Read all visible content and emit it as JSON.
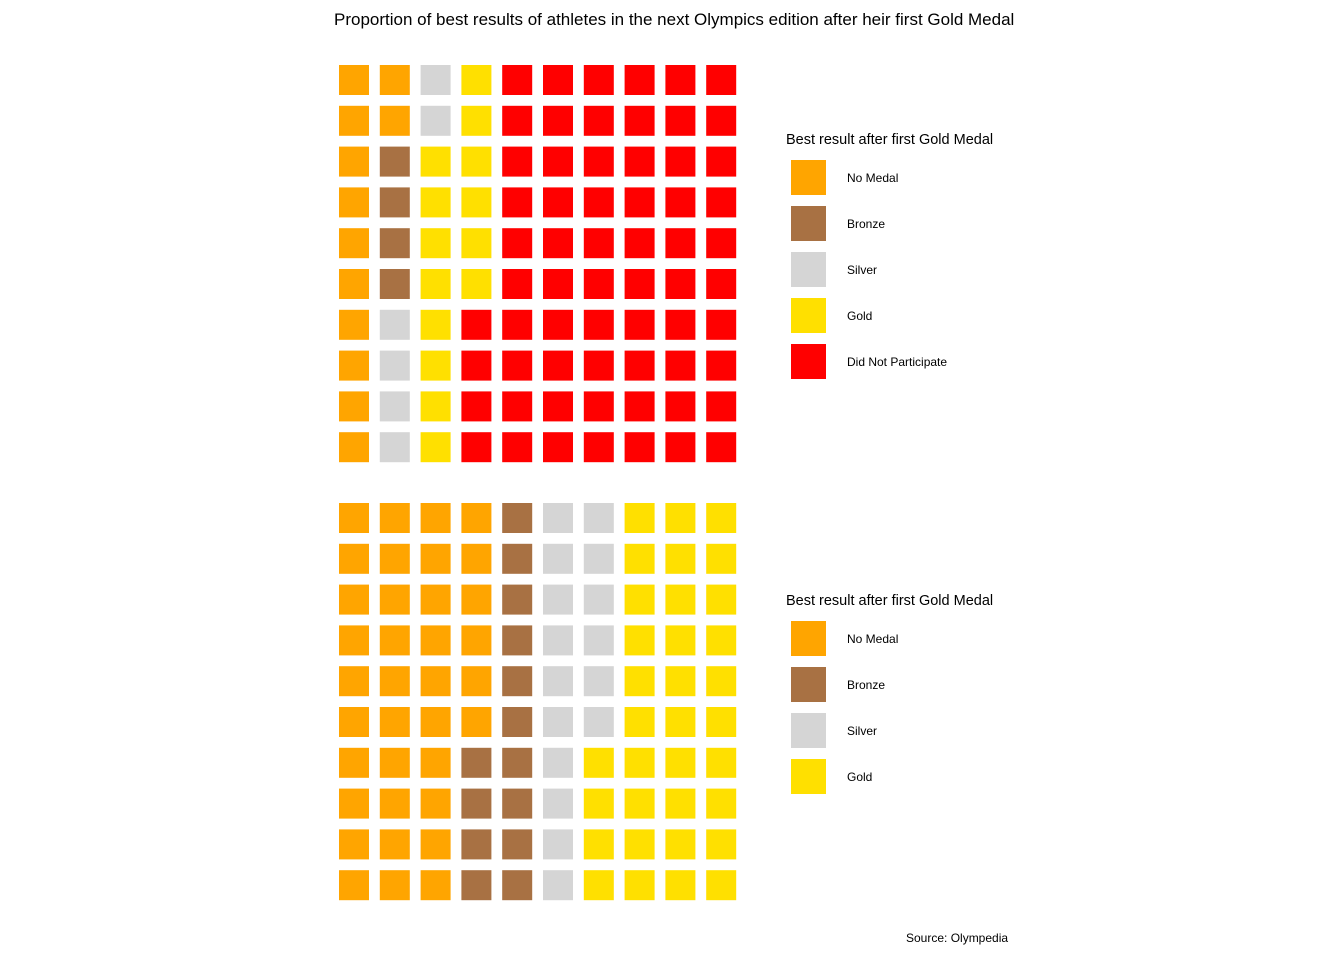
{
  "title": "Proportion of best results of athletes in the next Olympics edition after heir first Gold Medal",
  "source": "Source: Olympedia",
  "colors": {
    "No Medal": "#ffa500",
    "Bronze": "#a87143",
    "Silver": "#d5d5d5",
    "Gold": "#ffe000",
    "Did Not Participate": "#ff0000"
  },
  "chart_data": [
    {
      "type": "waffle",
      "grid": {
        "rows": 10,
        "cols": 10,
        "fill_order": "column-wise, top to bottom within each column"
      },
      "legend_title": "Best result after first Gold Medal",
      "categories": [
        "No Medal",
        "Bronze",
        "Silver",
        "Gold",
        "Did Not Participate"
      ],
      "values": [
        12,
        4,
        6,
        14,
        64
      ],
      "legend": {
        "position": "right",
        "items": [
          "No Medal",
          "Bronze",
          "Silver",
          "Gold",
          "Did Not Participate"
        ]
      }
    },
    {
      "type": "waffle",
      "grid": {
        "rows": 10,
        "cols": 10,
        "fill_order": "column-wise, top to bottom within each column"
      },
      "legend_title": "Best result after first Gold Medal",
      "categories": [
        "No Medal",
        "Bronze",
        "Silver",
        "Gold"
      ],
      "values": [
        36,
        14,
        16,
        34
      ],
      "legend": {
        "position": "right",
        "items": [
          "No Medal",
          "Bronze",
          "Silver",
          "Gold"
        ]
      }
    }
  ]
}
